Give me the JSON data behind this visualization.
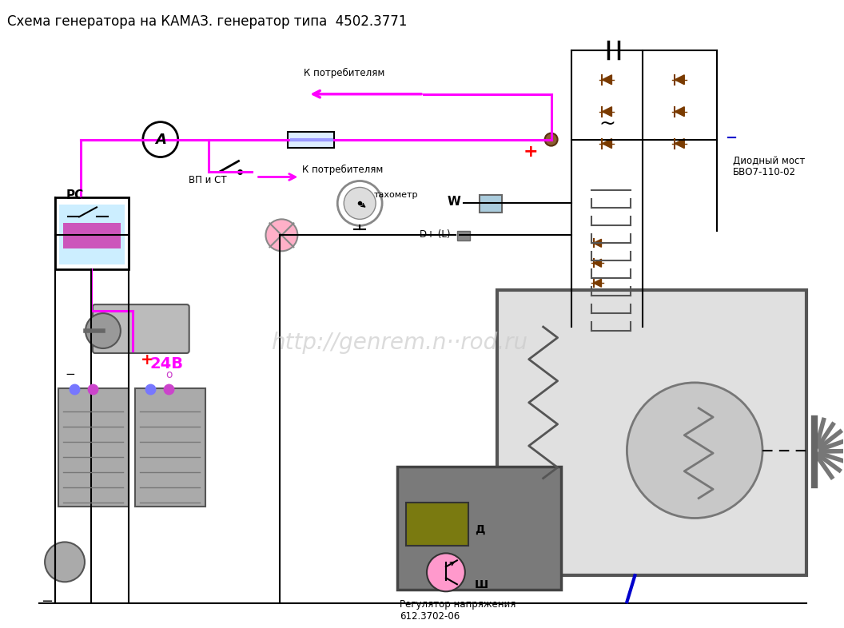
{
  "title": "Схема генератора на КАМАЗ. генератор типа  4502.3771",
  "title_fontsize": 12,
  "bg_color": "#ffffff",
  "magenta": "#FF00FF",
  "dark_brown": "#7A3B00",
  "blue_label": "#0000CC",
  "black": "#000000",
  "gray": "#888888",
  "labels": {
    "to_consumers_top": "К потребителям",
    "to_consumers_mid": "К потребителям",
    "pc": "РС",
    "vp_st": "ВП и СТ",
    "tachometer": "тахометр",
    "w_label": "W",
    "dplus": "D+ (L)",
    "diode_bridge": "Диодный мост\nБВО7-110-02",
    "plus24": "24В",
    "d_label": "Д",
    "sh_label": "Ш",
    "regulator": "Регулятор напряжения\n612.3702-06",
    "plus_sign": "+",
    "minus_right": "−",
    "minus_batt": "−",
    "minus_bottom": "−"
  }
}
